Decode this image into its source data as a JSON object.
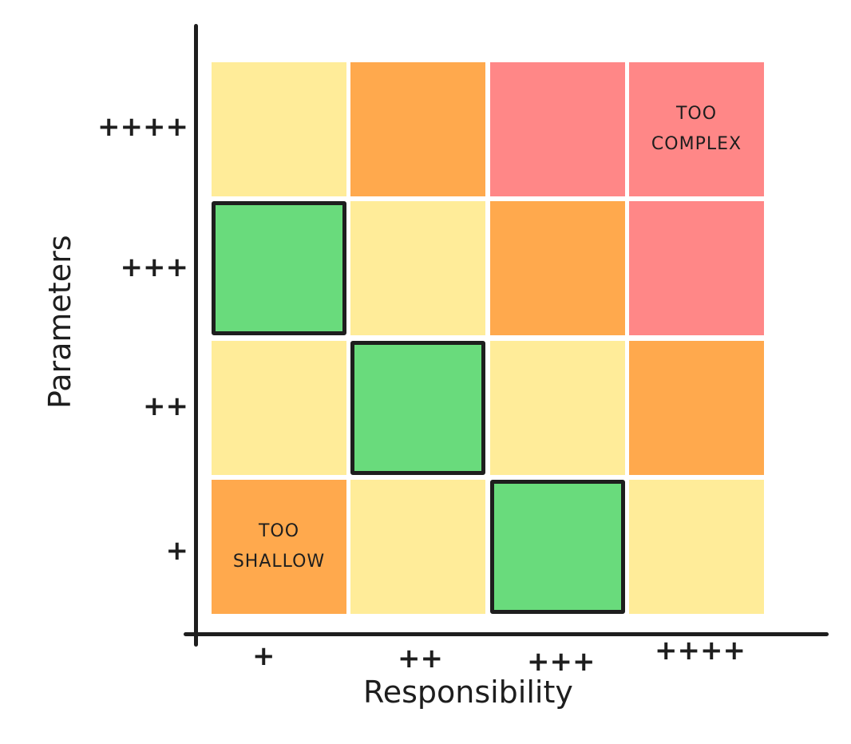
{
  "colors": {
    "low": "#ffec99",
    "mid": "#ffa94d",
    "high": "#ff8787",
    "ideal": "#69db7c",
    "outline": "#1e1e1e"
  },
  "chart_data": {
    "type": "heatmap",
    "xlabel": "Responsibility",
    "ylabel": "Parameters",
    "x_categories": [
      "+",
      "++",
      "+++",
      "++++"
    ],
    "y_categories": [
      "+",
      "++",
      "+++",
      "++++"
    ],
    "rows_top_to_bottom": [
      {
        "y": "++++",
        "cells": [
          "low",
          "mid",
          "high",
          "high"
        ]
      },
      {
        "y": "+++",
        "cells": [
          "ideal",
          "low",
          "mid",
          "high"
        ]
      },
      {
        "y": "++",
        "cells": [
          "low",
          "ideal",
          "low",
          "mid"
        ]
      },
      {
        "y": "+",
        "cells": [
          "mid",
          "low",
          "ideal",
          "low"
        ]
      }
    ],
    "highlighted": [
      [
        "+",
        "+++"
      ],
      [
        "++",
        "++"
      ],
      [
        "+++",
        "+"
      ]
    ],
    "annotations": [
      {
        "x": "++++",
        "y": "++++",
        "text": "TOO\nCOMPLEX"
      },
      {
        "x": "+",
        "y": "+",
        "text": "TOO\nSHALLOW"
      }
    ]
  }
}
